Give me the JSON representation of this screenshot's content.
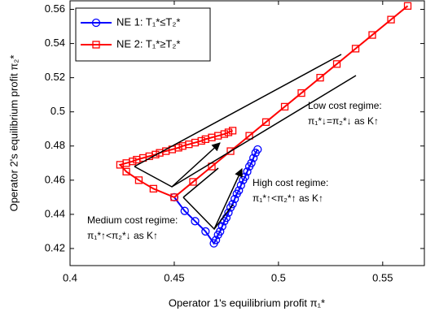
{
  "chart_data": {
    "type": "line",
    "x_label": "Operator 1's equilibrium profit π₁*",
    "y_label": "Operator 2's equilibrium profit π₂*",
    "xlim": [
      0.4,
      0.57
    ],
    "ylim": [
      0.41,
      0.565
    ],
    "xticks": [
      0.4,
      0.45,
      0.5,
      0.55
    ],
    "yticks": [
      0.42,
      0.44,
      0.46,
      0.48,
      0.5,
      0.52,
      0.54,
      0.56
    ],
    "grid": false,
    "legend": "upper left",
    "annotations": [
      [
        "Low cost regime:",
        "π₁*↓=π₂*↓ as K↑"
      ],
      [
        "High cost regime:",
        "π₁*↑<π₂*↑ as K↑"
      ],
      [
        "Medium cost regime:",
        "π₁*↑<π₂*↓ as K↑"
      ]
    ],
    "series": [
      {
        "name": "NE 1: T₁*≤T₂*",
        "color": "#0000ff",
        "marker": "circle",
        "x": [
          0.45,
          0.455,
          0.46,
          0.465,
          0.469,
          0.47,
          0.471,
          0.472,
          0.473,
          0.474,
          0.475,
          0.476,
          0.477,
          0.478,
          0.479,
          0.48,
          0.481,
          0.482,
          0.483,
          0.484,
          0.485,
          0.486,
          0.487,
          0.488,
          0.489,
          0.49
        ],
        "values": [
          0.45,
          0.442,
          0.436,
          0.43,
          0.423,
          0.425,
          0.428,
          0.43,
          0.433,
          0.436,
          0.438,
          0.441,
          0.444,
          0.446,
          0.449,
          0.452,
          0.454,
          0.457,
          0.46,
          0.462,
          0.465,
          0.468,
          0.47,
          0.473,
          0.476,
          0.478
        ]
      },
      {
        "name": "NE 2: T₁*≥T₂*",
        "color": "#ff0000",
        "marker": "square",
        "x": [
          0.562,
          0.554,
          0.545,
          0.537,
          0.528,
          0.52,
          0.511,
          0.503,
          0.494,
          0.486,
          0.477,
          0.468,
          0.459,
          0.45,
          0.44,
          0.433,
          0.427,
          0.424,
          0.427,
          0.43,
          0.432,
          0.435,
          0.438,
          0.441,
          0.443,
          0.446,
          0.449,
          0.452,
          0.454,
          0.457,
          0.46,
          0.463,
          0.465,
          0.468,
          0.471,
          0.474,
          0.476,
          0.478
        ],
        "values": [
          0.562,
          0.554,
          0.545,
          0.537,
          0.528,
          0.52,
          0.511,
          0.503,
          0.494,
          0.486,
          0.477,
          0.468,
          0.459,
          0.45,
          0.455,
          0.46,
          0.465,
          0.469,
          0.47,
          0.471,
          0.472,
          0.473,
          0.474,
          0.475,
          0.476,
          0.477,
          0.478,
          0.479,
          0.48,
          0.481,
          0.482,
          0.483,
          0.484,
          0.485,
          0.486,
          0.487,
          0.488,
          0.489
        ]
      }
    ]
  }
}
